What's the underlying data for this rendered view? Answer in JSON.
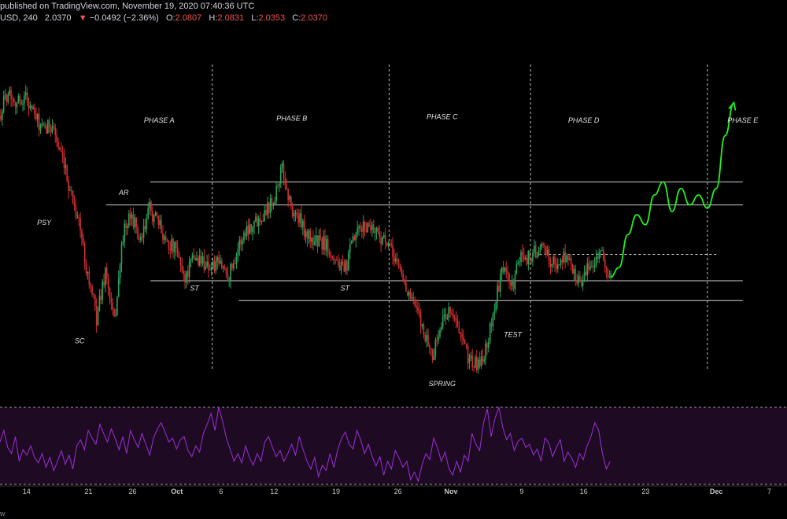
{
  "header": {
    "published_line": "published on TradingView.com, November 19, 2020 07:40:36 UTC",
    "symbol": "USD, 240",
    "last": "2.0370",
    "change_arrow": "▼",
    "change": "−0.0492 (−2.36%)",
    "o_label": "O:",
    "o_value": "2.0807",
    "h_label": "H:",
    "h_value": "2.0831",
    "l_label": "L:",
    "l_value": "2.0353",
    "c_label": "C:",
    "c_value": "2.0370"
  },
  "footer_brand": "w",
  "colors": {
    "background": "#000000",
    "up_candle": "#26a65b",
    "down_candle": "#d32f2f",
    "projection": "#22ee22",
    "level_lines": "#cfcfcf",
    "phase_dividers": "#bdbdbd",
    "oscillator_line": "#9b30d9",
    "oscillator_band": "#1e0a22",
    "axis_text": "#c8c8c8"
  },
  "chart_data": {
    "type": "candlestick",
    "title": "",
    "price_range": [
      1.72,
      2.86
    ],
    "x_axis": {
      "start": "2020-09-11",
      "end": "2020-12-09",
      "ticks": [
        {
          "date": "2020-09-14",
          "label": "14"
        },
        {
          "date": "2020-09-21",
          "label": "21"
        },
        {
          "date": "2020-09-26",
          "label": "26"
        },
        {
          "date": "2020-10-01",
          "label": "Oct"
        },
        {
          "date": "2020-10-06",
          "label": "6"
        },
        {
          "date": "2020-10-12",
          "label": "12"
        },
        {
          "date": "2020-10-19",
          "label": "19"
        },
        {
          "date": "2020-10-26",
          "label": "26"
        },
        {
          "date": "2020-11-01",
          "label": "Nov"
        },
        {
          "date": "2020-11-09",
          "label": "9"
        },
        {
          "date": "2020-11-16",
          "label": "16"
        },
        {
          "date": "2020-11-23",
          "label": "23"
        },
        {
          "date": "2020-12-01",
          "label": "Dec"
        },
        {
          "date": "2020-12-07",
          "label": "7"
        }
      ]
    },
    "price_path": [
      [
        "2020-09-11",
        2.58
      ],
      [
        "2020-09-12",
        2.66
      ],
      [
        "2020-09-13",
        2.62
      ],
      [
        "2020-09-14",
        2.64
      ],
      [
        "2020-09-15",
        2.58
      ],
      [
        "2020-09-16",
        2.53
      ],
      [
        "2020-09-17",
        2.56
      ],
      [
        "2020-09-18",
        2.45
      ],
      [
        "2020-09-19",
        2.36
      ],
      [
        "2020-09-20",
        2.26
      ],
      [
        "2020-09-21",
        2.1
      ],
      [
        "2020-09-22",
        1.97
      ],
      [
        "2020-09-23",
        2.11
      ],
      [
        "2020-09-24",
        1.95
      ],
      [
        "2020-09-25",
        2.22
      ],
      [
        "2020-09-26",
        2.28
      ],
      [
        "2020-09-27",
        2.19
      ],
      [
        "2020-09-28",
        2.3
      ],
      [
        "2020-09-29",
        2.25
      ],
      [
        "2020-09-30",
        2.2
      ],
      [
        "2020-10-01",
        2.17
      ],
      [
        "2020-10-02",
        2.09
      ],
      [
        "2020-10-03",
        2.15
      ],
      [
        "2020-10-04",
        2.14
      ],
      [
        "2020-10-05",
        2.12
      ],
      [
        "2020-10-06",
        2.13
      ],
      [
        "2020-10-07",
        2.1
      ],
      [
        "2020-10-08",
        2.18
      ],
      [
        "2020-10-09",
        2.24
      ],
      [
        "2020-10-10",
        2.26
      ],
      [
        "2020-10-11",
        2.29
      ],
      [
        "2020-10-12",
        2.33
      ],
      [
        "2020-10-13",
        2.42
      ],
      [
        "2020-10-14",
        2.3
      ],
      [
        "2020-10-15",
        2.26
      ],
      [
        "2020-10-16",
        2.21
      ],
      [
        "2020-10-17",
        2.2
      ],
      [
        "2020-10-18",
        2.19
      ],
      [
        "2020-10-19",
        2.15
      ],
      [
        "2020-10-20",
        2.1
      ],
      [
        "2020-10-21",
        2.2
      ],
      [
        "2020-10-22",
        2.24
      ],
      [
        "2020-10-23",
        2.25
      ],
      [
        "2020-10-24",
        2.22
      ],
      [
        "2020-10-25",
        2.18
      ],
      [
        "2020-10-26",
        2.14
      ],
      [
        "2020-10-27",
        2.06
      ],
      [
        "2020-10-28",
        2.0
      ],
      [
        "2020-10-29",
        1.93
      ],
      [
        "2020-10-30",
        1.85
      ],
      [
        "2020-10-31",
        1.95
      ],
      [
        "2020-11-01",
        2.0
      ],
      [
        "2020-11-02",
        1.92
      ],
      [
        "2020-11-03",
        1.85
      ],
      [
        "2020-11-04",
        1.82
      ],
      [
        "2020-11-05",
        1.87
      ],
      [
        "2020-11-06",
        2.0
      ],
      [
        "2020-11-07",
        2.12
      ],
      [
        "2020-11-08",
        2.06
      ],
      [
        "2020-11-09",
        2.16
      ],
      [
        "2020-11-10",
        2.15
      ],
      [
        "2020-11-11",
        2.18
      ],
      [
        "2020-11-12",
        2.16
      ],
      [
        "2020-11-13",
        2.12
      ],
      [
        "2020-11-14",
        2.16
      ],
      [
        "2020-11-15",
        2.1
      ],
      [
        "2020-11-16",
        2.08
      ],
      [
        "2020-11-17",
        2.14
      ],
      [
        "2020-11-18",
        2.17
      ],
      [
        "2020-11-19",
        2.08
      ]
    ],
    "projection": [
      [
        "2020-11-19",
        2.09
      ],
      [
        "2020-11-20",
        2.12
      ],
      [
        "2020-11-21",
        2.22
      ],
      [
        "2020-11-22",
        2.28
      ],
      [
        "2020-11-23",
        2.25
      ],
      [
        "2020-11-24",
        2.34
      ],
      [
        "2020-11-25",
        2.38
      ],
      [
        "2020-11-26",
        2.29
      ],
      [
        "2020-11-27",
        2.36
      ],
      [
        "2020-11-28",
        2.31
      ],
      [
        "2020-11-29",
        2.34
      ],
      [
        "2020-11-30",
        2.3
      ],
      [
        "2020-12-01",
        2.36
      ],
      [
        "2020-12-02",
        2.52
      ],
      [
        "2020-12-03",
        2.62
      ]
    ],
    "horizontal_levels": [
      {
        "price": 2.38,
        "from": "2020-09-28",
        "to": "2020-12-04",
        "style": "solid"
      },
      {
        "price": 2.31,
        "from": "2020-09-23",
        "to": "2020-12-04",
        "style": "solid"
      },
      {
        "price": 2.16,
        "from": "2020-11-11",
        "to": "2020-12-01",
        "style": "dashed"
      },
      {
        "price": 2.08,
        "from": "2020-09-28",
        "to": "2020-12-04",
        "style": "solid"
      },
      {
        "price": 2.02,
        "from": "2020-10-08",
        "to": "2020-12-04",
        "style": "solid"
      }
    ],
    "phase_dividers": [
      "2020-10-05",
      "2020-10-25",
      "2020-11-10",
      "2020-11-30"
    ],
    "annotations": [
      {
        "text": "PHASE A",
        "date": "2020-09-29",
        "price": 2.56
      },
      {
        "text": "PHASE B",
        "date": "2020-10-14",
        "price": 2.565
      },
      {
        "text": "PHASE C",
        "date": "2020-10-31",
        "price": 2.57
      },
      {
        "text": "PHASE D",
        "date": "2020-11-16",
        "price": 2.56
      },
      {
        "text": "PHASE E",
        "date": "2020-12-04",
        "price": 2.56
      },
      {
        "text": "AR",
        "date": "2020-09-25",
        "price": 2.34
      },
      {
        "text": "PSY",
        "date": "2020-09-16",
        "price": 2.25
      },
      {
        "text": "SC",
        "date": "2020-09-20",
        "price": 1.89
      },
      {
        "text": "ST",
        "date": "2020-10-03",
        "price": 2.05
      },
      {
        "text": "ST",
        "date": "2020-10-20",
        "price": 2.05
      },
      {
        "text": "TEST",
        "date": "2020-11-08",
        "price": 1.91
      },
      {
        "text": "SPRING",
        "date": "2020-10-31",
        "price": 1.76
      }
    ],
    "oscillator": {
      "range": [
        0,
        100
      ],
      "bands": [
        100,
        0
      ],
      "values": [
        55,
        70,
        48,
        40,
        62,
        30,
        45,
        38,
        50,
        35,
        28,
        40,
        22,
        35,
        18,
        30,
        44,
        26,
        38,
        20,
        50,
        58,
        45,
        70,
        60,
        52,
        78,
        66,
        55,
        72,
        60,
        45,
        62,
        40,
        70,
        58,
        48,
        66,
        52,
        38,
        60,
        72,
        80,
        68,
        55,
        60,
        46,
        58,
        62,
        44,
        36,
        50,
        42,
        66,
        78,
        92,
        70,
        100,
        82,
        60,
        45,
        30,
        40,
        28,
        50,
        35,
        25,
        40,
        30,
        55,
        62,
        48,
        36,
        44,
        30,
        40,
        52,
        38,
        62,
        45,
        30,
        20,
        35,
        10,
        25,
        18,
        40,
        22,
        45,
        60,
        68,
        52,
        46,
        70,
        58,
        40,
        52,
        36,
        24,
        36,
        12,
        30,
        20,
        44,
        34,
        22,
        30,
        6,
        16,
        4,
        26,
        40,
        32,
        60,
        48,
        30,
        42,
        20,
        12,
        30,
        16,
        38,
        30,
        66,
        52,
        44,
        80,
        98,
        62,
        86,
        100,
        74,
        58,
        66,
        44,
        56,
        60,
        48,
        52,
        38,
        46,
        30,
        60,
        54,
        36,
        48,
        58,
        30,
        42,
        34,
        22,
        40,
        32,
        50,
        62,
        80,
        70,
        40,
        20,
        30
      ]
    }
  }
}
